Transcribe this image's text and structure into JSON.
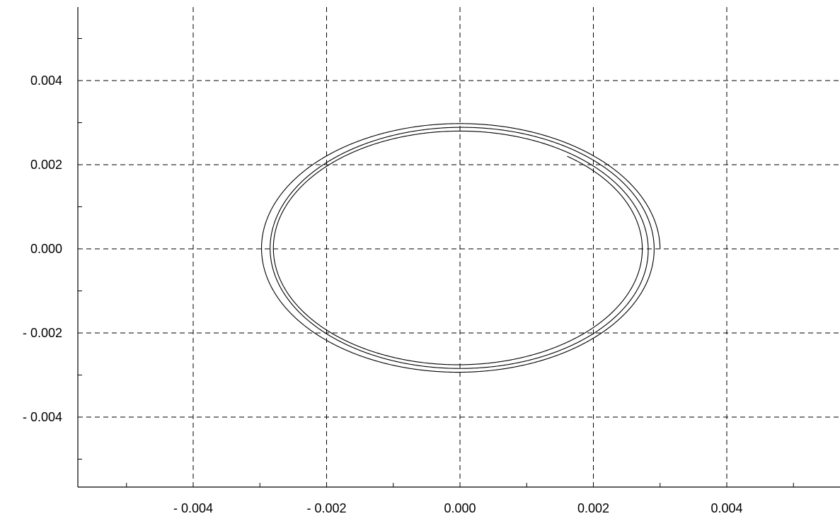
{
  "chart_data": {
    "type": "line",
    "title": "",
    "xlabel": "",
    "ylabel": "",
    "xlim": [
      -0.0057,
      0.0057
    ],
    "ylim": [
      -0.0057,
      0.0057
    ],
    "grid": true,
    "x_ticks": [
      -0.004,
      -0.002,
      0.0,
      0.002,
      0.004
    ],
    "x_tick_labels": [
      "- 0.004",
      "- 0.002",
      "0.000",
      "0.002",
      "0.004"
    ],
    "y_ticks": [
      0.004,
      0.002,
      0.0,
      -0.002,
      -0.004
    ],
    "y_tick_labels": [
      "0.004",
      "0.002",
      "0.000",
      "- 0.002",
      "- 0.004"
    ],
    "series": [
      {
        "description_of_shape": "decaying elliptical orbit",
        "start": [
          0.003,
          0.0
        ],
        "end": [
          0.00272,
          -0.0004
        ],
        "turns": 3.15,
        "x_radius_start": 0.003,
        "x_radius_end": 0.00272,
        "y_radius_start": 0.003,
        "y_radius_end": 0.00272
      }
    ]
  }
}
